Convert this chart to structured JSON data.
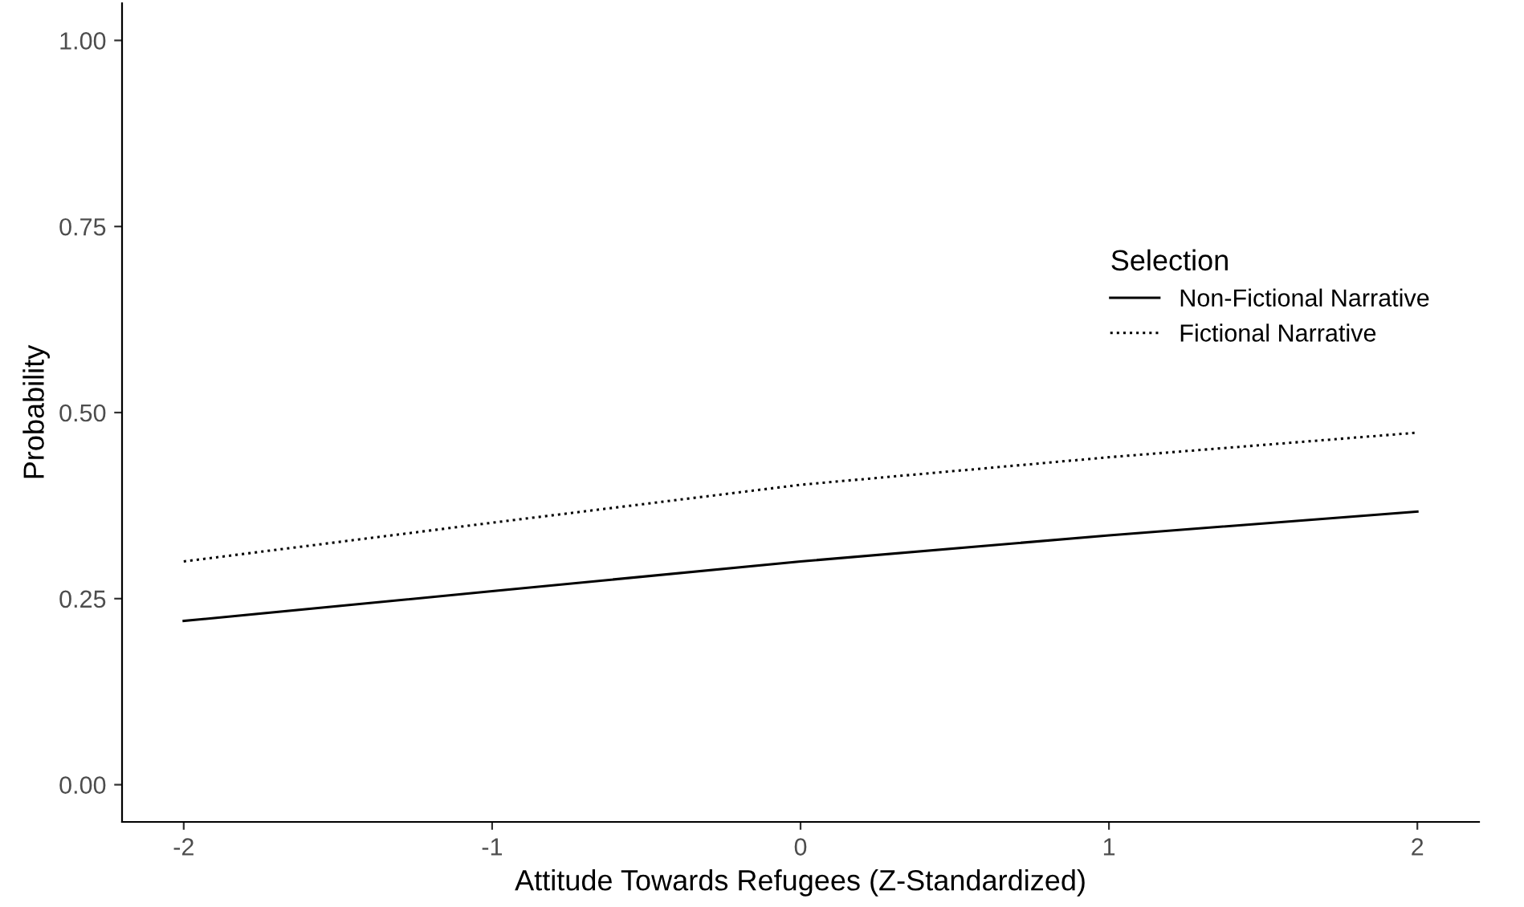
{
  "chart_data": {
    "type": "line",
    "xlabel": "Attitude Towards Refugees (Z-Standardized)",
    "ylabel": "Probability",
    "legend_title": "Selection",
    "x": [
      -2,
      -1,
      0,
      1,
      2
    ],
    "series": [
      {
        "name": "Non-Fictional Narrative",
        "color": "#000000",
        "line_style": "solid",
        "values": [
          0.22,
          0.26,
          0.3,
          0.335,
          0.367
        ]
      },
      {
        "name": "Fictional Narrative",
        "color": "#000000",
        "line_style": "dotted",
        "values": [
          0.3,
          0.352,
          0.403,
          0.44,
          0.473
        ]
      }
    ],
    "xlim": [
      -2.2,
      2.2
    ],
    "xticks": [
      {
        "value": -2,
        "label": "-2"
      },
      {
        "value": -1,
        "label": "-1"
      },
      0,
      1,
      2
    ],
    "ylim": [
      -0.05,
      1.05
    ],
    "yticks": [
      {
        "value": 0,
        "label": "0.00"
      },
      {
        "value": 0.25,
        "label": "0.25"
      },
      {
        "value": 0.5,
        "label": "0.50"
      },
      {
        "value": 0.75,
        "label": "0.75"
      },
      {
        "value": 1,
        "label": "1.00"
      }
    ],
    "grid": false,
    "legend": "right",
    "marker": "none"
  }
}
